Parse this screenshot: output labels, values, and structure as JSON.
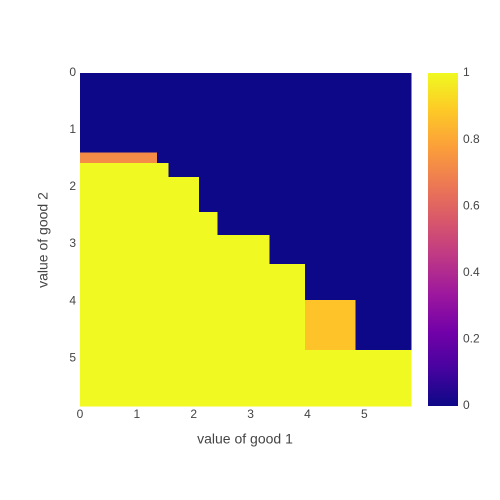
{
  "chart_data": {
    "type": "heatmap",
    "x_title": "value of good 1",
    "y_title": "value of good 2",
    "x_edges": [
      0,
      1.35,
      1.56,
      2.09,
      2.42,
      3.33,
      3.96,
      4.84,
      5.82
    ],
    "y_edges": [
      0,
      1.39,
      1.58,
      1.82,
      2.44,
      2.84,
      3.35,
      3.98,
      4.86,
      5.84
    ],
    "z": [
      [
        0,
        0,
        0,
        0,
        0,
        0,
        0,
        0
      ],
      [
        0.72,
        0,
        0,
        0,
        0,
        0,
        0,
        0
      ],
      [
        1,
        1,
        0,
        0,
        0,
        0,
        0,
        0
      ],
      [
        1,
        1,
        1,
        0,
        0,
        0,
        0,
        0
      ],
      [
        1,
        1,
        1,
        1,
        0,
        0,
        0,
        0
      ],
      [
        1,
        1,
        1,
        1,
        1,
        0,
        0,
        0
      ],
      [
        1,
        1,
        1,
        1,
        1,
        1,
        0,
        0
      ],
      [
        1,
        1,
        1,
        1,
        1,
        1,
        0.87,
        0
      ],
      [
        1,
        1,
        1,
        1,
        1,
        1,
        1,
        1
      ]
    ],
    "xlim": [
      0,
      5.82
    ],
    "ylim": [
      0,
      5.84
    ],
    "y_reversed": true,
    "xticks": [
      0,
      1,
      2,
      3,
      4,
      5
    ],
    "yticks": [
      0,
      1,
      2,
      3,
      4,
      5
    ],
    "zlim": [
      0,
      1
    ],
    "zticks": [
      0,
      0.2,
      0.4,
      0.6,
      0.8,
      1
    ],
    "colorscale": [
      "#0d0887",
      "#46039f",
      "#7201a8",
      "#9c179e",
      "#bd3786",
      "#d8576b",
      "#ed7953",
      "#fb9f3a",
      "#fdca26",
      "#f0f921"
    ]
  }
}
